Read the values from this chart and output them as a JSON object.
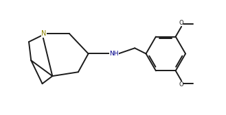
{
  "background_color": "#ffffff",
  "line_color": "#1a1a1a",
  "n_color": "#8B8000",
  "nh_color": "#00008B",
  "line_width": 1.4,
  "figsize": [
    3.29,
    1.68
  ],
  "dpi": 100,
  "xlim": [
    0,
    10
  ],
  "ylim": [
    0,
    5.1
  ]
}
